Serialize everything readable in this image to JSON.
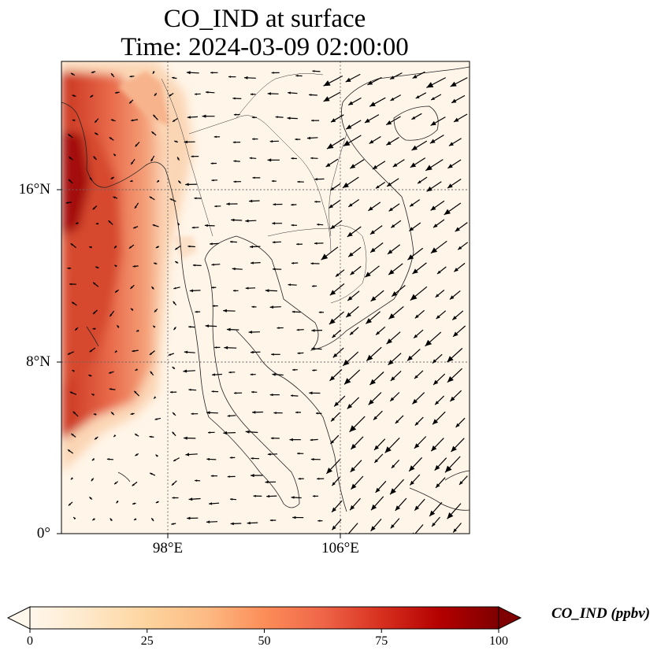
{
  "title": {
    "line1": "CO_IND at surface",
    "line2": "Time: 2024-03-09 02:00:00"
  },
  "map": {
    "variable": "CO_IND",
    "level": "surface",
    "lat_range": [
      0,
      22
    ],
    "lon_range": [
      93,
      112
    ],
    "lat_ticks": [
      {
        "value": 0,
        "label": "0°"
      },
      {
        "value": 8,
        "label": "8°N"
      },
      {
        "value": 16,
        "label": "16°N"
      }
    ],
    "lon_ticks": [
      {
        "value": 98,
        "label": "98°E"
      },
      {
        "value": 106,
        "label": "106°E"
      }
    ],
    "gridlines": "dotted",
    "wind_vectors": true,
    "colormap": "OrRd"
  },
  "colorbar": {
    "label": "CO_IND (ppbv)",
    "min": 0,
    "max": 100,
    "ticks": [
      "0",
      "25",
      "50",
      "75",
      "100"
    ],
    "extend": "both",
    "colors": [
      "#fff7ec",
      "#fee8c8",
      "#fdd49e",
      "#fdbb84",
      "#fc8d59",
      "#ef6548",
      "#d7301f",
      "#b30000",
      "#7f0000"
    ]
  }
}
